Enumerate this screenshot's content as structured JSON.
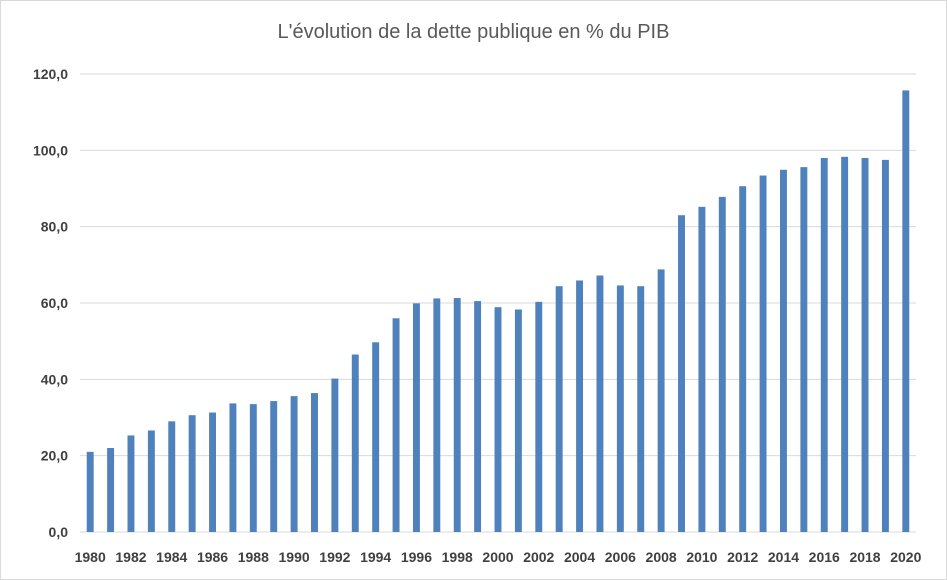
{
  "chart_data": {
    "type": "bar",
    "title": "L'évolution de la dette publique en % du PIB",
    "xlabel": "",
    "ylabel": "",
    "ylim": [
      0,
      120
    ],
    "ytick_values": [
      0,
      20,
      40,
      60,
      80,
      100,
      120
    ],
    "ytick_labels": [
      "0,0",
      "20,0",
      "40,0",
      "60,0",
      "80,0",
      "100,0",
      "120,0"
    ],
    "grid": true,
    "legend": "none",
    "bar_color": "#4f81bd",
    "grid_color": "#d9d9d9",
    "categories": [
      "1980",
      "1981",
      "1982",
      "1983",
      "1984",
      "1985",
      "1986",
      "1987",
      "1988",
      "1989",
      "1990",
      "1991",
      "1992",
      "1993",
      "1994",
      "1995",
      "1996",
      "1997",
      "1998",
      "1999",
      "2000",
      "2001",
      "2002",
      "2003",
      "2004",
      "2005",
      "2006",
      "2007",
      "2008",
      "2009",
      "2010",
      "2011",
      "2012",
      "2013",
      "2014",
      "2015",
      "2016",
      "2017",
      "2018",
      "2019",
      "2020"
    ],
    "xtick_labels": [
      "1980",
      "1982",
      "1984",
      "1986",
      "1988",
      "1990",
      "1992",
      "1994",
      "1996",
      "1998",
      "2000",
      "2002",
      "2004",
      "2006",
      "2008",
      "2010",
      "2012",
      "2014",
      "2016",
      "2018",
      "2020"
    ],
    "values": [
      21.0,
      22.0,
      25.3,
      26.6,
      29.0,
      30.6,
      31.3,
      33.7,
      33.5,
      34.3,
      35.6,
      36.4,
      40.2,
      46.5,
      49.7,
      56.0,
      59.9,
      61.2,
      61.3,
      60.5,
      58.9,
      58.3,
      60.3,
      64.4,
      65.9,
      67.2,
      64.6,
      64.4,
      68.8,
      83.0,
      85.2,
      87.8,
      90.6,
      93.4,
      94.9,
      95.6,
      98.0,
      98.3,
      98.0,
      97.5,
      115.7
    ]
  }
}
